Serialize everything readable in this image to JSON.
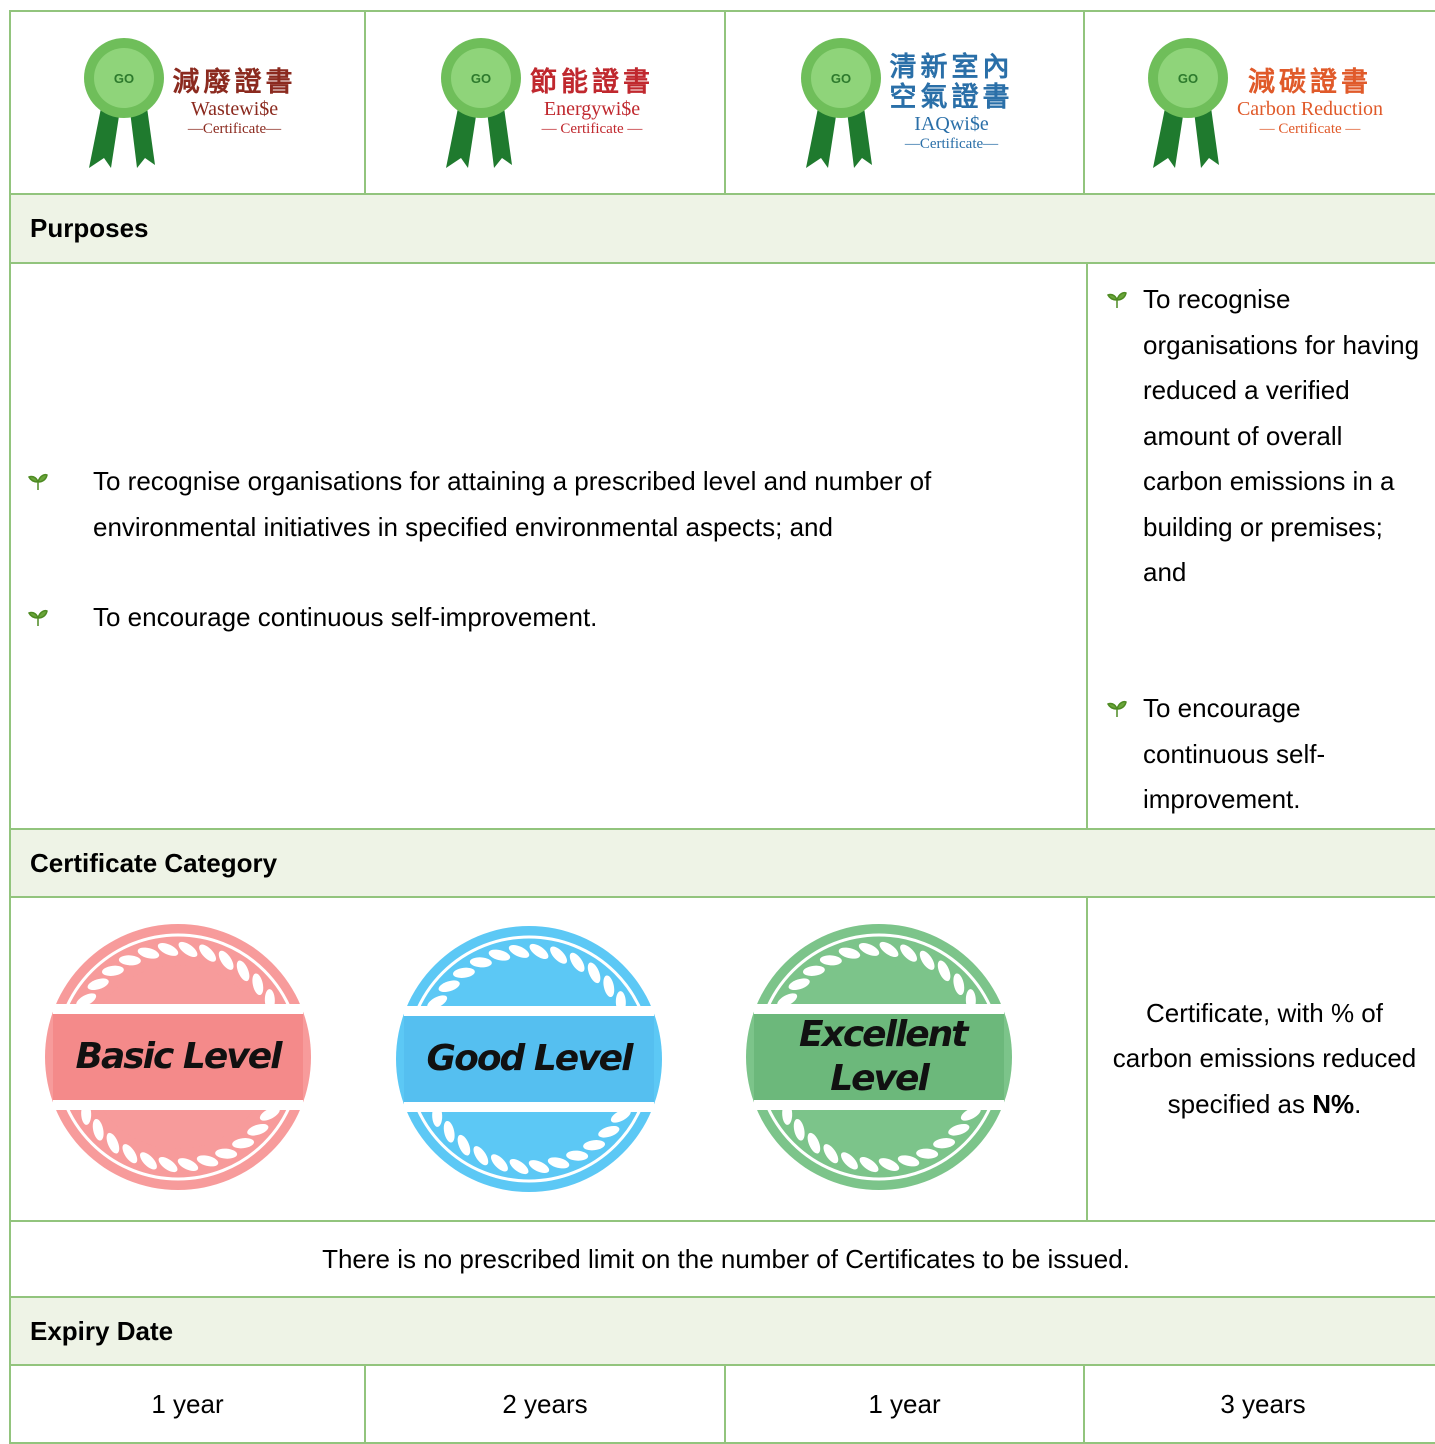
{
  "certificates": [
    {
      "title_lines": [
        "減廢證書"
      ],
      "name": "Wastewi$e",
      "tag": "—Certificate—"
    },
    {
      "title_lines": [
        "節能證書"
      ],
      "name": "Energywi$e",
      "tag": "— Certificate —"
    },
    {
      "title_lines": [
        "清新室內",
        "空氣證書"
      ],
      "name": "IAQwi$e",
      "tag": "—Certificate—"
    },
    {
      "title_lines": [
        "減碳證書"
      ],
      "name": "Carbon Reduction",
      "tag": "— Certificate —"
    }
  ],
  "purposes": {
    "heading": "Purposes",
    "left_items": [
      "To recognise organisations for attaining a prescribed level and number of environmental initiatives in specified environmental aspects; and",
      "To encourage continuous self-improvement."
    ],
    "right_items": [
      "To recognise organisations for having reduced a verified amount of overall carbon emissions in a building or premises; and",
      "To encourage continuous self-improvement."
    ]
  },
  "category": {
    "heading": "Certificate Category",
    "levels": [
      "Basic Level",
      "Good Level",
      "Excellent Level"
    ],
    "carbon_text": "Certificate, with % of carbon emissions reduced specified as",
    "carbon_bold": "N%",
    "carbon_end": ".",
    "note": "There is no prescribed limit on the number of Certificates to be issued."
  },
  "expiry": {
    "heading": "Expiry Date",
    "values": [
      "1 year",
      "2 years",
      "1 year",
      "3 years"
    ]
  }
}
